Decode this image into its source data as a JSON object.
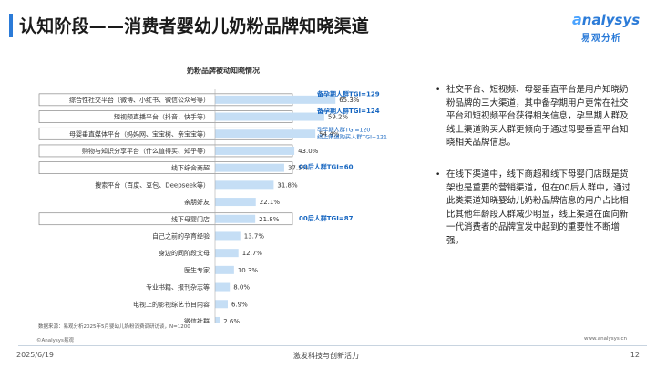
{
  "header": {
    "title": "认知阶段——消费者婴幼儿奶粉品牌知晓渠道"
  },
  "logo": {
    "name": "nalysys",
    "name_a": "a",
    "sub": "易观分析",
    "color": "#2b7bd8"
  },
  "colors": {
    "accent": "#2b7bd8",
    "bar": "#c5def5",
    "highlight_border": "#777777",
    "tgi_text": "#1565c0"
  },
  "chart_data": {
    "type": "bar",
    "orientation": "horizontal",
    "title": "奶粉品牌被动知晓情况",
    "categories": [
      "综合性社交平台（微博、小红书、微信公众号等）",
      "短视频直播平台（抖音、快手等）",
      "母婴垂直媒体平台（妈妈网、宝宝树、亲宝宝等）",
      "购物与知识分享平台（什么值得买、知乎等）",
      "线下综合商超",
      "搜索平台（百度、豆包、Deepseek等）",
      "亲朋好友",
      "线下母婴门店",
      "自己之前的孕育经验",
      "身边的同阶段父母",
      "医生专家",
      "专业书籍、报刊杂志等",
      "电视上的影视综艺节目内容",
      "微信社群"
    ],
    "values": [
      65.3,
      59.2,
      54.4,
      43.0,
      37.5,
      31.8,
      22.1,
      21.8,
      13.7,
      12.7,
      10.3,
      8.0,
      6.9,
      2.6
    ],
    "value_labels": [
      "65.3%",
      "59.2%",
      "54.4%",
      "43.0%",
      "37.5%",
      "31.8%",
      "22.1%",
      "21.8%",
      "13.7%",
      "12.7%",
      "10.3%",
      "8.0%",
      "6.9%",
      "2.6%"
    ],
    "unit": "%",
    "highlighted": [
      0,
      1,
      2,
      3,
      4,
      7
    ],
    "annotations": [
      {
        "index": 0,
        "text": [
          "备孕期人群TGI=129"
        ]
      },
      {
        "index": 1,
        "text": [
          "备孕期人群TGI=124"
        ]
      },
      {
        "index": 2,
        "text": [
          "孕早期人群TGI=120",
          "线上渠道购买人群TGI=121"
        ]
      },
      {
        "index": 4,
        "text": [
          "00后人群TGI=60"
        ]
      },
      {
        "index": 7,
        "text": [
          "00后人群TGI=87"
        ]
      }
    ],
    "xlim": [
      0,
      100
    ]
  },
  "source": "数据来源：易观分析2025年5月婴幼儿奶粉消费调研访谈，N=1200",
  "bullets": [
    "社交平台、短视频、母婴垂直平台是用户知晓奶粉品牌的三大渠道，其中备孕期用户更常在社交平台和短视频平台获得相关信息，孕早期人群及线上渠道购买人群更倾向于通过母婴垂直平台知晓相关品牌信息。",
    "在线下渠道中，线下商超和线下母婴门店既是货架也是重要的营销渠道，但在00后人群中，通过此类渠道知晓婴幼儿奶粉品牌信息的用户占比相比其他年龄段人群减少明显，线上渠道在面向新一代消费者的品牌宣发中起到的重要性不断增强。"
  ],
  "footer": {
    "copyright": "©Analysys易观",
    "website": "www.analysys.cn",
    "date": "2025/6/19",
    "slogan": "激发科技与创新活力",
    "page": "12"
  }
}
